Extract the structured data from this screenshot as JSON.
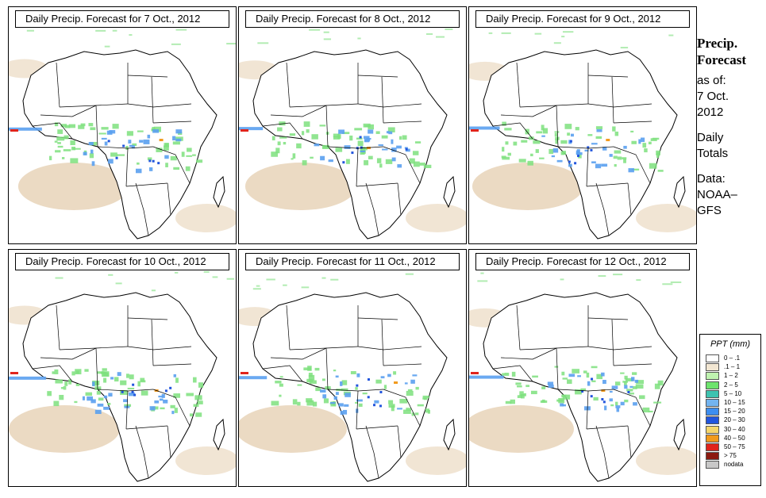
{
  "panels": [
    {
      "title": "Daily Precip. Forecast for  7 Oct., 2012"
    },
    {
      "title": "Daily Precip. Forecast for  8 Oct., 2012"
    },
    {
      "title": "Daily Precip. Forecast for  9 Oct., 2012"
    },
    {
      "title": "Daily Precip. Forecast for  10 Oct., 2012"
    },
    {
      "title": "Daily Precip. Forecast for  11 Oct., 2012"
    },
    {
      "title": "Daily Precip. Forecast for  12 Oct., 2012"
    }
  ],
  "side": {
    "title_line1": "Precip.",
    "title_line2": "Forecast",
    "asof": "as of:",
    "date_line1": "7 Oct.",
    "date_line2": "2012",
    "daily_line1": "Daily",
    "daily_line2": "Totals",
    "data_line1": "Data:",
    "data_line2": "NOAA–",
    "data_line3": "GFS"
  },
  "legend": {
    "title": "PPT (mm)",
    "items": [
      {
        "label": "0 – .1",
        "color": "#ffffff"
      },
      {
        "label": ".1 – 1",
        "color": "#f2e6d2"
      },
      {
        "label": "1 – 2",
        "color": "#bff2b0"
      },
      {
        "label": "2 – 5",
        "color": "#6de36d"
      },
      {
        "label": "5 – 10",
        "color": "#3ec3b0"
      },
      {
        "label": "10 – 15",
        "color": "#73b4f0"
      },
      {
        "label": "15 – 20",
        "color": "#3d8ef0"
      },
      {
        "label": "20 – 30",
        "color": "#2255dd"
      },
      {
        "label": "30 – 40",
        "color": "#f5d66b"
      },
      {
        "label": "40 – 50",
        "color": "#f29a1c"
      },
      {
        "label": "50 – 75",
        "color": "#e0241c"
      },
      {
        "label": "> 75",
        "color": "#8b1a10"
      },
      {
        "label": "nodata",
        "color": "#c8c8c8"
      }
    ]
  },
  "colors": {
    "desert": "#e8d4b8",
    "green": "#7ee07e",
    "blue": "#5aa0f0",
    "darkblue": "#2255dd",
    "red": "#e0241c",
    "orange": "#f29a1c"
  }
}
